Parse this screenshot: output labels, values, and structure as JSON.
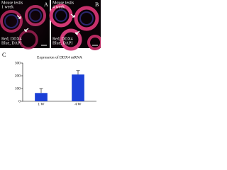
{
  "panels": [
    {
      "label": "A",
      "caption": [
        "Mouse testis",
        "1 week"
      ],
      "stain": [
        "Red, DDX4",
        "Blue, DAPI"
      ]
    },
    {
      "label": "B",
      "caption": [
        "Mouse testis",
        "4 week"
      ],
      "stain": [
        "Red, DDX4",
        "Blue, DAPI"
      ]
    }
  ],
  "chart_data": {
    "type": "bar",
    "panel_label": "C",
    "title": "Expression of DDX4 mRNA",
    "categories": [
      "1 W",
      "4 W"
    ],
    "values": [
      65,
      210
    ],
    "errors": [
      35,
      30
    ],
    "color": "#1a3fd6",
    "ylim": [
      0,
      300
    ],
    "yticks": [
      0,
      100,
      200,
      300
    ]
  }
}
